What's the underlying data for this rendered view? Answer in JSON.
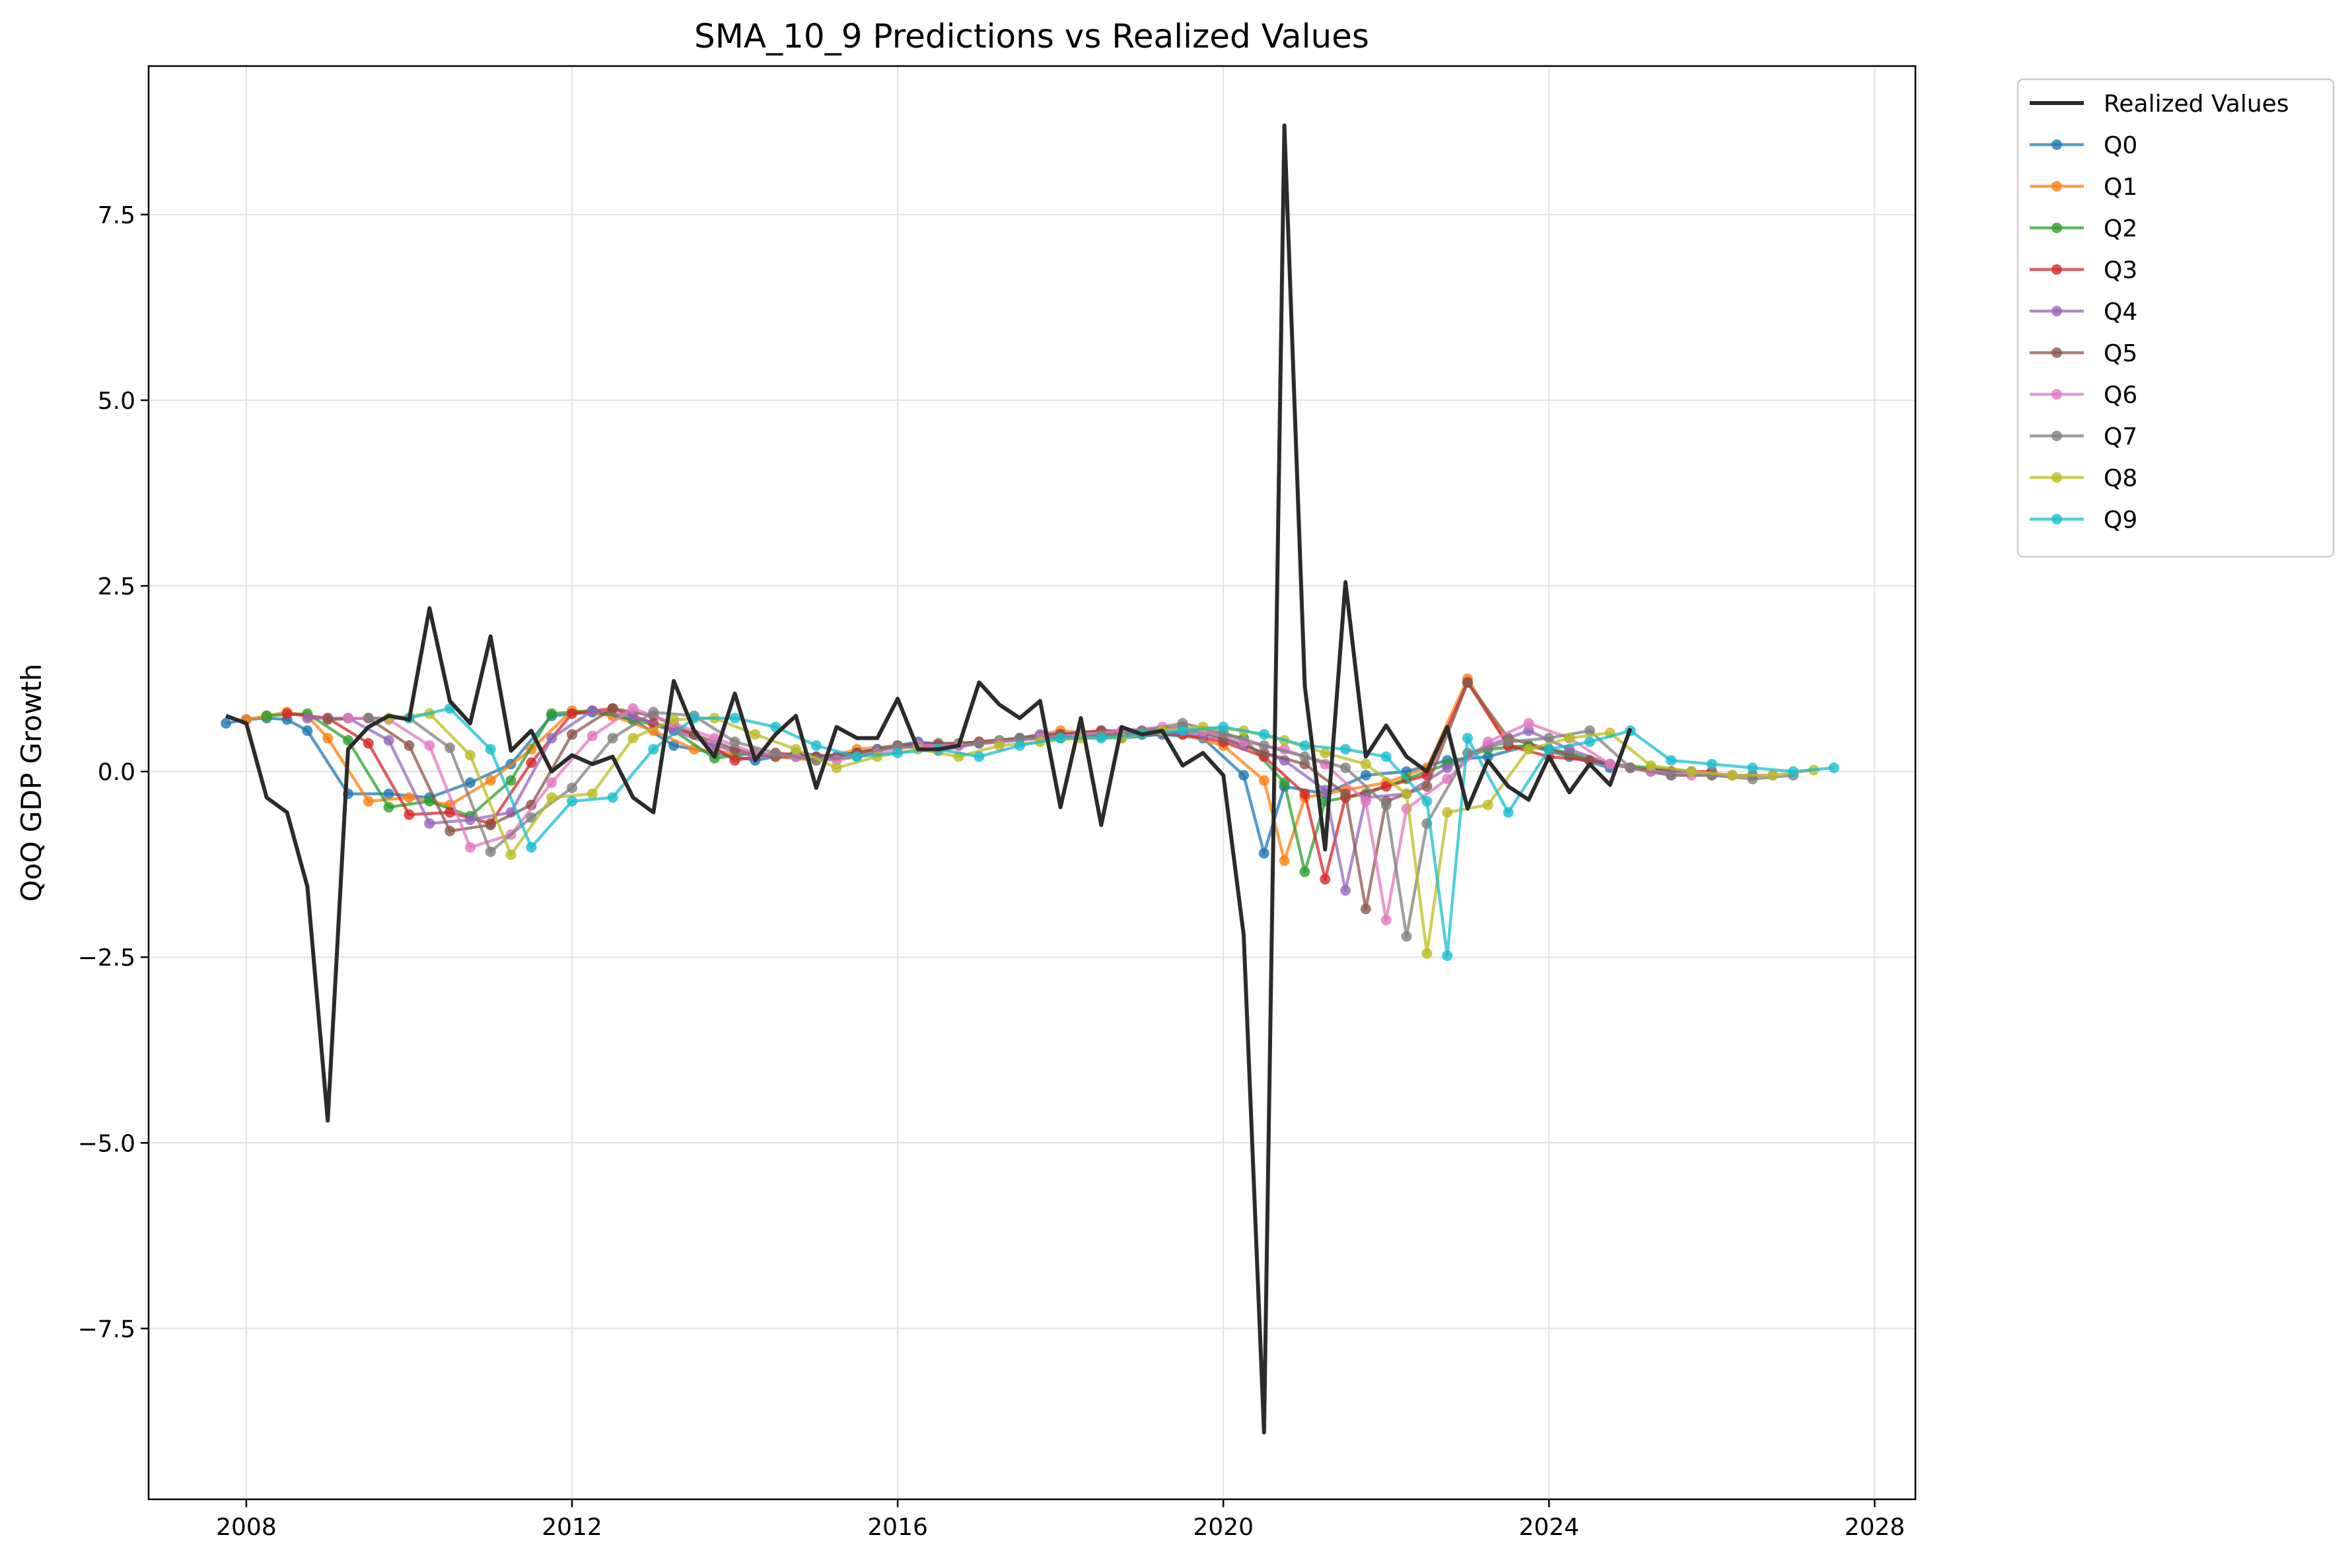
{
  "chart_data": {
    "type": "line",
    "title": "SMA_10_9 Predictions vs Realized Values",
    "xlabel": "",
    "ylabel": "QoQ GDP Growth",
    "xlim": [
      2006.8,
      2028.5
    ],
    "ylim": [
      -9.8,
      9.5
    ],
    "x_ticks": [
      2008,
      2012,
      2016,
      2020,
      2024,
      2028
    ],
    "x_tick_labels": [
      "2008",
      "2012",
      "2016",
      "2020",
      "2024",
      "2028"
    ],
    "y_ticks": [
      -7.5,
      -5.0,
      -2.5,
      0.0,
      2.5,
      5.0,
      7.5
    ],
    "y_tick_labels": [
      "−7.5",
      "−5.0",
      "−2.5",
      "0.0",
      "2.5",
      "5.0",
      "7.5"
    ],
    "grid": true,
    "legend_position": "outside-top-right",
    "series": [
      {
        "name": "Realized Values",
        "color": "#2b2b2b",
        "marker": false,
        "x": [
          2007.75,
          2008.0,
          2008.25,
          2008.5,
          2008.75,
          2009.0,
          2009.25,
          2009.5,
          2009.75,
          2010.0,
          2010.25,
          2010.5,
          2010.75,
          2011.0,
          2011.25,
          2011.5,
          2011.75,
          2012.0,
          2012.25,
          2012.5,
          2012.75,
          2013.0,
          2013.25,
          2013.5,
          2013.75,
          2014.0,
          2014.25,
          2014.5,
          2014.75,
          2015.0,
          2015.25,
          2015.5,
          2015.75,
          2016.0,
          2016.25,
          2016.5,
          2016.75,
          2017.0,
          2017.25,
          2017.5,
          2017.75,
          2018.0,
          2018.25,
          2018.5,
          2018.75,
          2019.0,
          2019.25,
          2019.5,
          2019.75,
          2020.0,
          2020.25,
          2020.5,
          2020.75,
          2021.0,
          2021.25,
          2021.5,
          2021.75,
          2022.0,
          2022.25,
          2022.5,
          2022.75,
          2023.0,
          2023.25,
          2023.5,
          2023.75,
          2024.0,
          2024.25,
          2024.5,
          2024.75,
          2025.0
        ],
        "y": [
          0.75,
          0.65,
          -0.35,
          -0.55,
          -1.55,
          -4.7,
          0.3,
          0.6,
          0.75,
          0.7,
          2.2,
          0.95,
          0.65,
          1.82,
          0.28,
          0.55,
          0.0,
          0.22,
          0.1,
          0.2,
          -0.35,
          -0.55,
          1.22,
          0.55,
          0.2,
          1.05,
          0.15,
          0.5,
          0.75,
          -0.22,
          0.6,
          0.45,
          0.45,
          0.98,
          0.3,
          0.3,
          0.35,
          1.2,
          0.9,
          0.72,
          0.95,
          -0.48,
          0.72,
          -0.72,
          0.6,
          0.5,
          0.55,
          0.08,
          0.25,
          -0.05,
          -2.2,
          -8.9,
          8.7,
          1.15,
          -1.05,
          2.55,
          0.2,
          0.62,
          0.2,
          0.0,
          0.6,
          -0.5,
          0.15,
          -0.2,
          -0.38,
          0.2,
          -0.28,
          0.1,
          -0.18,
          0.58
        ]
      },
      {
        "name": "Q0",
        "color": "#1f77b4",
        "marker": true,
        "x": [
          2007.75,
          2008.0,
          2008.25,
          2008.5,
          2008.75,
          2009.25,
          2009.75,
          2010.25,
          2010.75,
          2011.25,
          2011.75,
          2012.25,
          2012.75,
          2013.25,
          2013.75,
          2014.25,
          2014.75,
          2015.25,
          2015.75,
          2016.25,
          2016.75,
          2017.25,
          2017.75,
          2018.25,
          2018.75,
          2019.25,
          2019.75,
          2020.25,
          2020.5,
          2020.75,
          2021.25,
          2021.75,
          2022.25,
          2022.75,
          2023.25,
          2023.75,
          2024.25,
          2024.75
        ],
        "y": [
          0.65,
          0.7,
          0.72,
          0.7,
          0.55,
          -0.3,
          -0.3,
          -0.35,
          -0.15,
          0.1,
          0.75,
          0.8,
          0.7,
          0.35,
          0.25,
          0.15,
          0.25,
          0.2,
          0.3,
          0.4,
          0.35,
          0.4,
          0.45,
          0.5,
          0.45,
          0.5,
          0.45,
          -0.05,
          -1.1,
          -0.2,
          -0.3,
          -0.05,
          0.0,
          0.15,
          0.2,
          0.35,
          0.2,
          0.05
        ]
      },
      {
        "name": "Q1",
        "color": "#ff7f0e",
        "marker": true,
        "x": [
          2008.0,
          2008.25,
          2008.5,
          2008.75,
          2009.0,
          2009.5,
          2010.0,
          2010.5,
          2011.0,
          2011.5,
          2012.0,
          2012.5,
          2013.0,
          2013.5,
          2014.0,
          2014.5,
          2015.0,
          2015.5,
          2016.0,
          2016.5,
          2017.0,
          2017.5,
          2018.0,
          2018.5,
          2019.0,
          2019.5,
          2020.0,
          2020.5,
          2020.75,
          2021.0,
          2021.5,
          2022.0,
          2022.5,
          2023.0,
          2023.5,
          2024.0,
          2024.5,
          2025.0,
          2025.5
        ],
        "y": [
          0.7,
          0.75,
          0.8,
          0.75,
          0.45,
          -0.4,
          -0.35,
          -0.45,
          -0.12,
          0.3,
          0.82,
          0.75,
          0.55,
          0.3,
          0.25,
          0.2,
          0.15,
          0.3,
          0.35,
          0.35,
          0.4,
          0.45,
          0.55,
          0.5,
          0.5,
          0.5,
          0.35,
          -0.12,
          -1.2,
          -0.35,
          -0.25,
          -0.15,
          0.05,
          1.25,
          0.35,
          0.3,
          0.15,
          0.05,
          0.0
        ]
      },
      {
        "name": "Q2",
        "color": "#2ca02c",
        "marker": true,
        "x": [
          2008.25,
          2008.75,
          2009.25,
          2009.75,
          2010.25,
          2010.75,
          2011.25,
          2011.75,
          2012.25,
          2012.75,
          2013.25,
          2013.75,
          2014.25,
          2014.75,
          2015.25,
          2015.75,
          2016.25,
          2016.75,
          2017.25,
          2017.75,
          2018.25,
          2018.75,
          2019.25,
          2019.75,
          2020.25,
          2020.75,
          2021.0,
          2021.25,
          2021.75,
          2022.25,
          2022.75,
          2023.25,
          2023.75,
          2024.25,
          2024.75,
          2025.25,
          2025.75
        ],
        "y": [
          0.75,
          0.78,
          0.42,
          -0.48,
          -0.4,
          -0.6,
          -0.12,
          0.78,
          0.82,
          0.7,
          0.55,
          0.18,
          0.25,
          0.2,
          0.2,
          0.3,
          0.35,
          0.38,
          0.42,
          0.48,
          0.52,
          0.48,
          0.52,
          0.55,
          0.45,
          -0.15,
          -1.35,
          -0.4,
          -0.3,
          -0.1,
          0.1,
          0.3,
          0.35,
          0.25,
          0.1,
          0.05,
          0.0
        ]
      },
      {
        "name": "Q3",
        "color": "#d62728",
        "marker": true,
        "x": [
          2008.5,
          2009.0,
          2009.5,
          2010.0,
          2010.5,
          2011.0,
          2011.5,
          2012.0,
          2012.5,
          2013.0,
          2013.5,
          2014.0,
          2014.5,
          2015.0,
          2015.5,
          2016.0,
          2016.5,
          2017.0,
          2017.5,
          2018.0,
          2018.5,
          2019.0,
          2019.5,
          2020.0,
          2020.5,
          2021.0,
          2021.25,
          2021.5,
          2022.0,
          2022.5,
          2023.0,
          2023.5,
          2024.0,
          2024.5,
          2025.0,
          2025.5,
          2026.0
        ],
        "y": [
          0.78,
          0.72,
          0.38,
          -0.58,
          -0.55,
          -0.7,
          0.12,
          0.78,
          0.85,
          0.65,
          0.5,
          0.15,
          0.25,
          0.2,
          0.25,
          0.35,
          0.35,
          0.4,
          0.45,
          0.5,
          0.55,
          0.5,
          0.5,
          0.4,
          0.2,
          -0.3,
          -1.45,
          -0.35,
          -0.2,
          -0.05,
          1.2,
          0.35,
          0.2,
          0.15,
          0.05,
          0.0,
          0.0
        ]
      },
      {
        "name": "Q4",
        "color": "#9467bd",
        "marker": true,
        "x": [
          2008.75,
          2009.25,
          2009.75,
          2010.25,
          2010.75,
          2011.25,
          2011.75,
          2012.25,
          2012.75,
          2013.25,
          2013.75,
          2014.25,
          2014.75,
          2015.25,
          2015.75,
          2016.25,
          2016.75,
          2017.25,
          2017.75,
          2018.25,
          2018.75,
          2019.25,
          2019.75,
          2020.25,
          2020.75,
          2021.25,
          2021.5,
          2021.75,
          2022.25,
          2022.75,
          2023.25,
          2023.75,
          2024.25,
          2024.75,
          2025.25,
          2025.75,
          2026.25
        ],
        "y": [
          0.72,
          0.72,
          0.42,
          -0.7,
          -0.65,
          -0.55,
          0.45,
          0.82,
          0.75,
          0.55,
          0.35,
          0.2,
          0.2,
          0.2,
          0.3,
          0.38,
          0.35,
          0.4,
          0.5,
          0.52,
          0.52,
          0.52,
          0.5,
          0.35,
          0.15,
          -0.25,
          -1.6,
          -0.35,
          -0.3,
          0.05,
          0.35,
          0.55,
          0.3,
          0.1,
          0.0,
          0.0,
          -0.05
        ]
      },
      {
        "name": "Q5",
        "color": "#8c564b",
        "marker": true,
        "x": [
          2009.0,
          2009.5,
          2010.0,
          2010.5,
          2011.0,
          2011.5,
          2012.0,
          2012.5,
          2013.0,
          2013.5,
          2014.0,
          2014.5,
          2015.0,
          2015.5,
          2016.0,
          2016.5,
          2017.0,
          2017.5,
          2018.0,
          2018.5,
          2019.0,
          2019.5,
          2020.0,
          2020.5,
          2021.0,
          2021.5,
          2021.75,
          2022.0,
          2022.5,
          2023.0,
          2023.5,
          2024.0,
          2024.5,
          2025.0,
          2025.5,
          2026.0,
          2026.5
        ],
        "y": [
          0.7,
          0.72,
          0.35,
          -0.8,
          -0.72,
          -0.45,
          0.5,
          0.85,
          0.75,
          0.5,
          0.3,
          0.2,
          0.2,
          0.25,
          0.35,
          0.38,
          0.38,
          0.45,
          0.5,
          0.55,
          0.55,
          0.6,
          0.45,
          0.25,
          0.1,
          -0.3,
          -1.85,
          -0.4,
          -0.2,
          1.2,
          0.45,
          0.3,
          0.15,
          0.05,
          -0.05,
          -0.05,
          -0.05
        ]
      },
      {
        "name": "Q6",
        "color": "#e377c2",
        "marker": true,
        "x": [
          2009.25,
          2009.75,
          2010.25,
          2010.75,
          2011.25,
          2011.75,
          2012.25,
          2012.75,
          2013.25,
          2013.75,
          2014.25,
          2014.75,
          2015.25,
          2015.75,
          2016.25,
          2016.75,
          2017.25,
          2017.75,
          2018.25,
          2018.75,
          2019.25,
          2019.75,
          2020.25,
          2020.75,
          2021.25,
          2021.75,
          2022.0,
          2022.25,
          2022.75,
          2023.25,
          2023.75,
          2024.25,
          2024.75,
          2025.25,
          2025.75,
          2026.25,
          2026.75
        ],
        "y": [
          0.72,
          0.7,
          0.35,
          -1.02,
          -0.85,
          -0.15,
          0.48,
          0.85,
          0.65,
          0.45,
          0.25,
          0.2,
          0.15,
          0.25,
          0.35,
          0.35,
          0.4,
          0.45,
          0.5,
          0.55,
          0.6,
          0.55,
          0.4,
          0.3,
          0.1,
          -0.4,
          -2.0,
          -0.5,
          -0.1,
          0.4,
          0.65,
          0.45,
          0.1,
          0.0,
          -0.05,
          -0.05,
          -0.05
        ]
      },
      {
        "name": "Q7",
        "color": "#7f7f7f",
        "marker": true,
        "x": [
          2009.5,
          2010.0,
          2010.5,
          2011.0,
          2011.5,
          2012.0,
          2012.5,
          2013.0,
          2013.5,
          2014.0,
          2014.5,
          2015.0,
          2015.5,
          2016.0,
          2016.5,
          2017.0,
          2017.5,
          2018.0,
          2018.5,
          2019.0,
          2019.5,
          2020.0,
          2020.5,
          2021.0,
          2021.5,
          2022.0,
          2022.25,
          2022.5,
          2023.0,
          2023.5,
          2024.0,
          2024.5,
          2025.0,
          2025.5,
          2026.0,
          2026.5,
          2027.0
        ],
        "y": [
          0.72,
          0.72,
          0.32,
          -1.08,
          -0.62,
          -0.22,
          0.45,
          0.8,
          0.75,
          0.4,
          0.25,
          0.15,
          0.2,
          0.35,
          0.28,
          0.38,
          0.45,
          0.45,
          0.48,
          0.55,
          0.65,
          0.52,
          0.35,
          0.2,
          0.05,
          -0.45,
          -2.22,
          -0.7,
          0.25,
          0.4,
          0.45,
          0.55,
          0.05,
          -0.05,
          -0.05,
          -0.1,
          -0.05
        ]
      },
      {
        "name": "Q8",
        "color": "#bcbd22",
        "marker": true,
        "x": [
          2009.75,
          2010.25,
          2010.75,
          2011.25,
          2011.75,
          2012.25,
          2012.75,
          2013.25,
          2013.75,
          2014.25,
          2014.75,
          2015.25,
          2015.75,
          2016.25,
          2016.75,
          2017.25,
          2017.75,
          2018.25,
          2018.75,
          2019.25,
          2019.75,
          2020.25,
          2020.75,
          2021.25,
          2021.75,
          2022.25,
          2022.5,
          2022.75,
          2023.25,
          2023.75,
          2024.25,
          2024.75,
          2025.25,
          2025.75,
          2026.25,
          2026.75,
          2027.25
        ],
        "y": [
          0.72,
          0.78,
          0.22,
          -1.12,
          -0.35,
          -0.3,
          0.45,
          0.7,
          0.72,
          0.5,
          0.3,
          0.05,
          0.2,
          0.3,
          0.2,
          0.35,
          0.4,
          0.45,
          0.45,
          0.55,
          0.6,
          0.55,
          0.42,
          0.25,
          0.1,
          -0.3,
          -2.45,
          -0.55,
          -0.45,
          0.3,
          0.45,
          0.52,
          0.08,
          0.0,
          -0.05,
          -0.05,
          0.02
        ]
      },
      {
        "name": "Q9",
        "color": "#17becf",
        "marker": true,
        "x": [
          2010.0,
          2010.5,
          2011.0,
          2011.5,
          2012.0,
          2012.5,
          2013.0,
          2013.5,
          2014.0,
          2014.5,
          2015.0,
          2015.5,
          2016.0,
          2016.5,
          2017.0,
          2017.5,
          2018.0,
          2018.5,
          2019.0,
          2019.5,
          2020.0,
          2020.5,
          2021.0,
          2021.5,
          2022.0,
          2022.5,
          2022.75,
          2023.0,
          2023.5,
          2024.0,
          2024.5,
          2025.0,
          2025.5,
          2026.0,
          2026.5,
          2027.0,
          2027.5
        ],
        "y": [
          0.72,
          0.85,
          0.3,
          -1.02,
          -0.4,
          -0.35,
          0.3,
          0.72,
          0.72,
          0.6,
          0.35,
          0.2,
          0.25,
          0.3,
          0.2,
          0.35,
          0.45,
          0.45,
          0.5,
          0.55,
          0.6,
          0.5,
          0.35,
          0.3,
          0.2,
          -0.4,
          -2.48,
          0.45,
          -0.55,
          0.3,
          0.4,
          0.55,
          0.15,
          0.1,
          0.05,
          0.0,
          0.05
        ]
      }
    ]
  }
}
